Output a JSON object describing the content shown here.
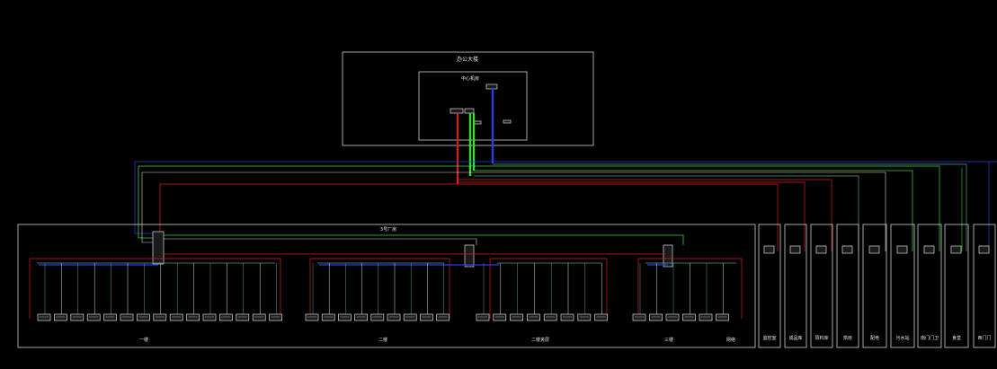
{
  "office_building": {
    "title": "办公大楼"
  },
  "center_room": {
    "title": "中心机房"
  },
  "plant": {
    "title": "3号厂房"
  },
  "zones": [
    {
      "label": "一楼",
      "switch_count": 15
    },
    {
      "label": "二楼",
      "switch_count": 9
    },
    {
      "label": "二楼夹层",
      "switch_count": 8
    },
    {
      "label": "三楼",
      "switch_count": 6
    }
  ],
  "roof_label": "网络",
  "buildings": [
    "监控室",
    "成品库",
    "原料库",
    "烘房",
    "配电",
    "污水站",
    "南门门卫",
    "食堂",
    "西门门"
  ],
  "colors": {
    "red": "#d42020",
    "green": "#38d838",
    "blue": "#2b3de0",
    "teal": "#4aa0a0",
    "white": "#d8d8d8"
  }
}
